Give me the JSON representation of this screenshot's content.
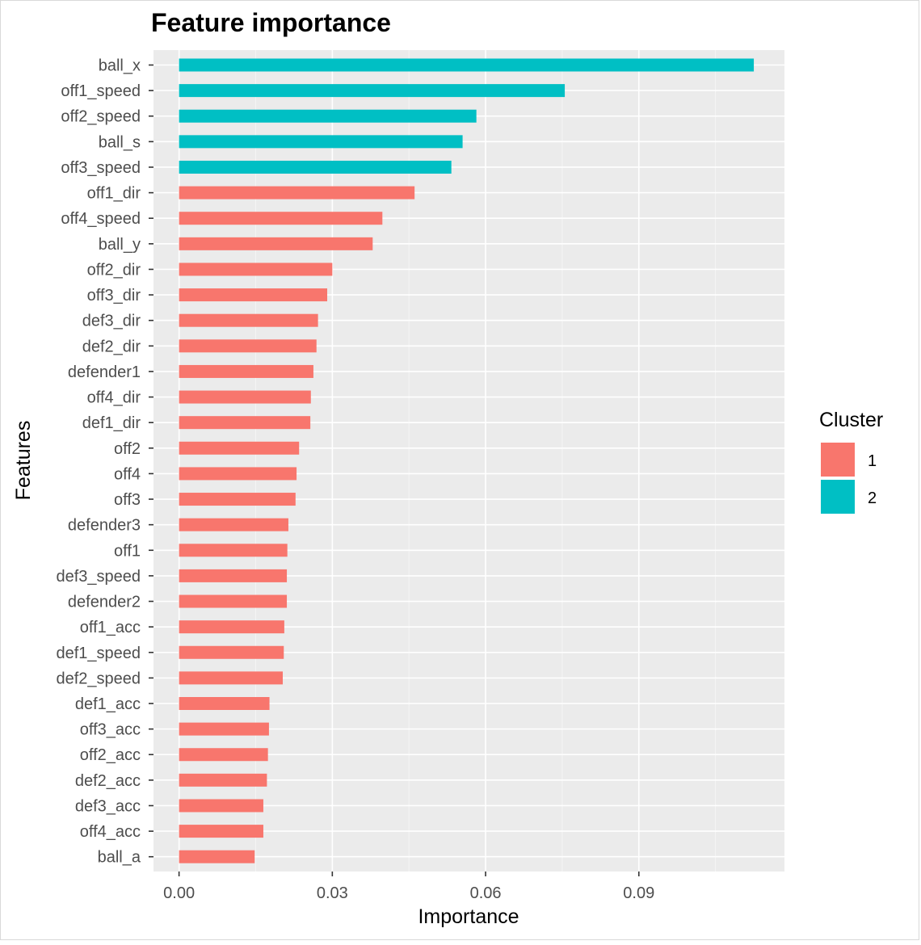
{
  "chart_data": {
    "type": "bar",
    "orientation": "horizontal",
    "title": "Feature importance",
    "xlabel": "Importance",
    "ylabel": "Features",
    "xlim": [
      -0.005,
      0.1185
    ],
    "xticks": [
      0.0,
      0.03,
      0.06,
      0.09
    ],
    "xtick_labels": [
      "0.00",
      "0.03",
      "0.06",
      "0.09"
    ],
    "grid": true,
    "legend": {
      "title": "Cluster",
      "placement": "right",
      "entries": [
        {
          "label": "1",
          "color": "#F8766D"
        },
        {
          "label": "2",
          "color": "#00BFC4"
        }
      ]
    },
    "bars": [
      {
        "feature": "ball_x",
        "value": 0.1125,
        "cluster": "2"
      },
      {
        "feature": "off1_speed",
        "value": 0.0755,
        "cluster": "2"
      },
      {
        "feature": "off2_speed",
        "value": 0.0582,
        "cluster": "2"
      },
      {
        "feature": "ball_s",
        "value": 0.0555,
        "cluster": "2"
      },
      {
        "feature": "off3_speed",
        "value": 0.0533,
        "cluster": "2"
      },
      {
        "feature": "off1_dir",
        "value": 0.0461,
        "cluster": "1"
      },
      {
        "feature": "off4_speed",
        "value": 0.0398,
        "cluster": "1"
      },
      {
        "feature": "ball_y",
        "value": 0.0379,
        "cluster": "1"
      },
      {
        "feature": "off2_dir",
        "value": 0.03,
        "cluster": "1"
      },
      {
        "feature": "off3_dir",
        "value": 0.029,
        "cluster": "1"
      },
      {
        "feature": "def3_dir",
        "value": 0.0272,
        "cluster": "1"
      },
      {
        "feature": "def2_dir",
        "value": 0.0269,
        "cluster": "1"
      },
      {
        "feature": "defender1",
        "value": 0.0263,
        "cluster": "1"
      },
      {
        "feature": "off4_dir",
        "value": 0.0258,
        "cluster": "1"
      },
      {
        "feature": "def1_dir",
        "value": 0.0257,
        "cluster": "1"
      },
      {
        "feature": "off2",
        "value": 0.0235,
        "cluster": "1"
      },
      {
        "feature": "off4",
        "value": 0.023,
        "cluster": "1"
      },
      {
        "feature": "off3",
        "value": 0.0228,
        "cluster": "1"
      },
      {
        "feature": "defender3",
        "value": 0.0214,
        "cluster": "1"
      },
      {
        "feature": "off1",
        "value": 0.0212,
        "cluster": "1"
      },
      {
        "feature": "def3_speed",
        "value": 0.0211,
        "cluster": "1"
      },
      {
        "feature": "defender2",
        "value": 0.0211,
        "cluster": "1"
      },
      {
        "feature": "off1_acc",
        "value": 0.0206,
        "cluster": "1"
      },
      {
        "feature": "def1_speed",
        "value": 0.0205,
        "cluster": "1"
      },
      {
        "feature": "def2_speed",
        "value": 0.0203,
        "cluster": "1"
      },
      {
        "feature": "def1_acc",
        "value": 0.0177,
        "cluster": "1"
      },
      {
        "feature": "off3_acc",
        "value": 0.0176,
        "cluster": "1"
      },
      {
        "feature": "off2_acc",
        "value": 0.0174,
        "cluster": "1"
      },
      {
        "feature": "def2_acc",
        "value": 0.0172,
        "cluster": "1"
      },
      {
        "feature": "def3_acc",
        "value": 0.0165,
        "cluster": "1"
      },
      {
        "feature": "off4_acc",
        "value": 0.0165,
        "cluster": "1"
      },
      {
        "feature": "ball_a",
        "value": 0.0148,
        "cluster": "1"
      }
    ],
    "colors": {
      "panel_background": "#EBEBEB",
      "grid_major": "#FFFFFF",
      "grid_minor": "#F5F5F5",
      "tick_text": "#4D4D4D",
      "tick_mark": "#333333"
    }
  }
}
